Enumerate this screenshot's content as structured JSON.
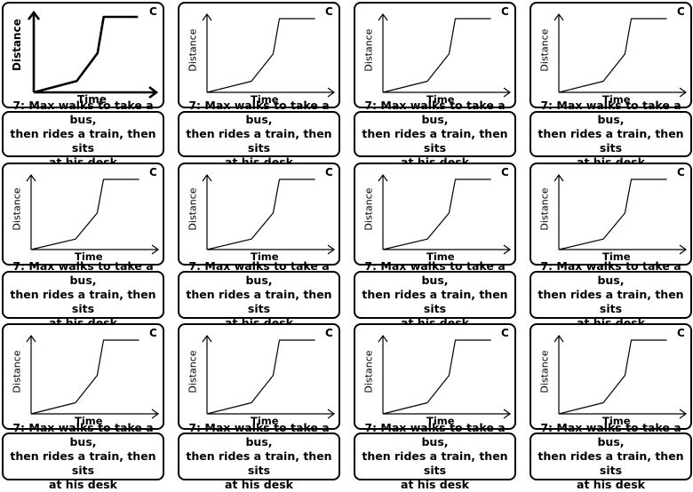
{
  "card": {
    "corner_label": "C",
    "x_axis_label": "Time",
    "y_axis_label": "Distance",
    "caption_lines": [
      "7: Max walks to take a bus,",
      "then rides a train, then sits",
      "at his desk"
    ]
  },
  "chart_data": {
    "type": "line",
    "xlabel": "Time",
    "ylabel": "Distance",
    "segments": [
      "walk",
      "bus",
      "train",
      "sit"
    ],
    "x": [
      0,
      0.35,
      0.52,
      0.57,
      0.85
    ],
    "y": [
      0,
      0.15,
      0.52,
      1.0,
      1.0
    ]
  },
  "grid": {
    "rows": 3,
    "cols": 4
  }
}
